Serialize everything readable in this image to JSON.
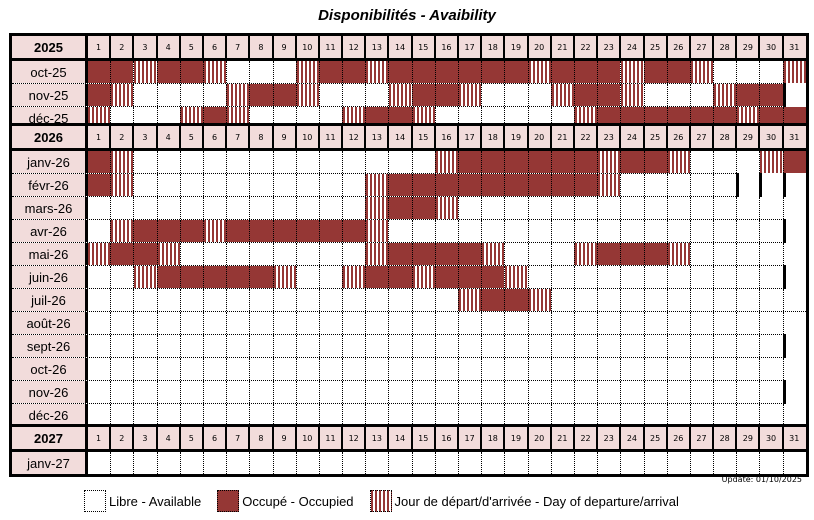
{
  "title": "Disponibilités - Avaibility",
  "colors": {
    "occupied": "#953735",
    "header": "#f2dcdb"
  },
  "days": [
    "1",
    "2",
    "3",
    "4",
    "5",
    "6",
    "7",
    "8",
    "9",
    "10",
    "11",
    "12",
    "13",
    "14",
    "15",
    "16",
    "17",
    "18",
    "19",
    "20",
    "21",
    "22",
    "23",
    "24",
    "25",
    "26",
    "27",
    "28",
    "29",
    "30",
    "31"
  ],
  "state_codes": {
    "O": "occupied",
    "S": "departure/arrival",
    ".": "available",
    "X": "no such day"
  },
  "blocks": [
    {
      "year": "2025",
      "months": [
        {
          "label": "oct-25",
          "days": "OOSOOS...SOOSOOOOOOSOOOSOOS...S"
        },
        {
          "label": "nov-25",
          "days": "OS....SOOS...SOOS...SOOS...SOOX"
        },
        {
          "label": "déc-25",
          "days": "S...SOS....SOOS......SOOOOOOSOO"
        }
      ]
    },
    {
      "year": "2026",
      "months": [
        {
          "label": "janv-26",
          "days": "OS.............SOOOOOOSOOS...SO"
        },
        {
          "label": "févr-26",
          "days": "OS..........SOOOOOOOOOS.....XXX"
        },
        {
          "label": "mars-26",
          "days": "............SOOS..............."
        },
        {
          "label": "avr-26",
          "days": ".SOOOSOOOOOOS.................X"
        },
        {
          "label": "mai-26",
          "days": "SOOS........SOOOOS...SOOOS....."
        },
        {
          "label": "juin-26",
          "days": "..SOOOOOS..SOOSOOOS...........X"
        },
        {
          "label": "juil-26",
          "days": "................SOOS..........."
        },
        {
          "label": "août-26",
          "days": "..............................."
        },
        {
          "label": "sept-26",
          "days": "..............................X"
        },
        {
          "label": "oct-26",
          "days": "..............................."
        },
        {
          "label": "nov-26",
          "days": "..............................X"
        },
        {
          "label": "déc-26",
          "days": "..............................."
        }
      ]
    },
    {
      "year": "2027",
      "months": [
        {
          "label": "janv-27",
          "days": "..............................."
        }
      ]
    }
  ],
  "update": "Update: 01/10/2025",
  "legend": [
    {
      "code": "free",
      "label": "Libre - Available"
    },
    {
      "code": "O",
      "label": "Occupé - Occupied"
    },
    {
      "code": "S",
      "label": "Jour de départ/d'arrivée - Day of departure/arrival"
    }
  ]
}
